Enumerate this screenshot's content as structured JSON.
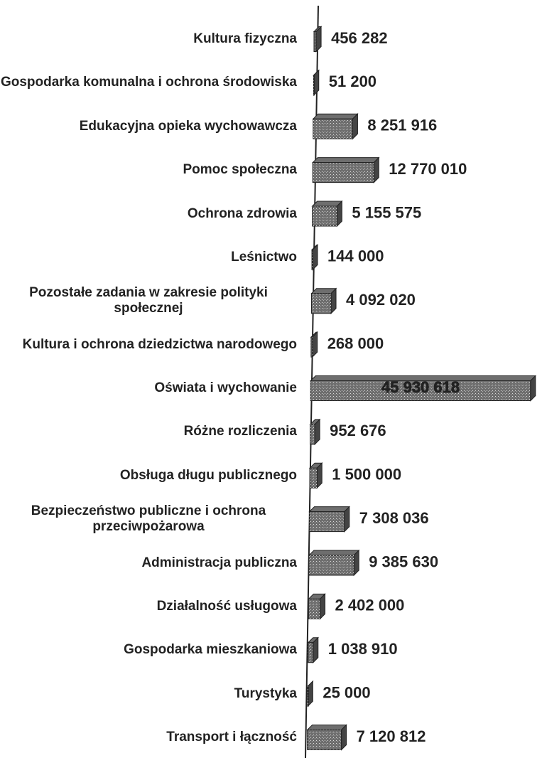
{
  "chart_data": {
    "type": "bar",
    "orientation": "horizontal",
    "categories": [
      "Kultura fizyczna",
      "Gospodarka komunalna i ochrona środowiska",
      "Edukacyjna opieka wychowawcza",
      "Pomoc społeczna",
      "Ochrona zdrowia",
      "Leśnictwo",
      "Pozostałe zadania w zakresie polityki społecznej",
      "Kultura i ochrona dziedzictwa narodowego",
      "Oświata i wychowanie",
      "Różne rozliczenia",
      "Obsługa długu publicznego",
      "Bezpieczeństwo publiczne i ochrona przeciwpożarowa",
      "Administracja publiczna",
      "Działalność usługowa",
      "Gospodarka mieszkaniowa",
      "Turystyka",
      "Transport i łączność"
    ],
    "values": [
      456282,
      51200,
      8251916,
      12770010,
      5155575,
      144000,
      4092020,
      268000,
      45930618,
      952676,
      1500000,
      7308036,
      9385630,
      2402000,
      1038910,
      25000,
      7120812
    ],
    "value_labels": [
      "456 282",
      "51 200",
      "8 251 916",
      "12 770 010",
      "5 155 575",
      "144 000",
      "4 092 020",
      "268 000",
      "45 930 618",
      "952 676",
      "1 500 000",
      "7 308 036",
      "9 385 630",
      "2 402 000",
      "1 038 910",
      "25 000",
      "7 120 812"
    ],
    "color": "#6e6e6e",
    "xlim": [
      0,
      46000000
    ]
  }
}
